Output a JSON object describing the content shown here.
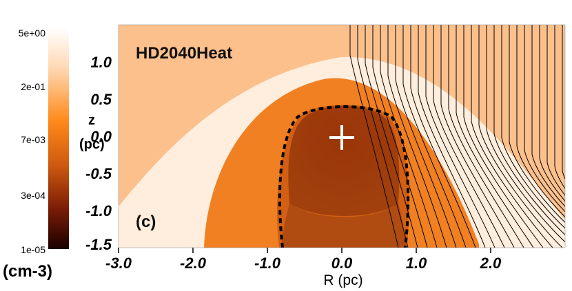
{
  "title": "HD2040Heat",
  "panel_label": "(c)",
  "colorbar": {
    "ticks": [
      "5e+00",
      "2e-01",
      "7e-03",
      "3e-04",
      "1e-05"
    ],
    "unit": "(cm-3)",
    "colors": [
      "#ffffff",
      "#ffd9b5",
      "#ff8a1a",
      "#cf5a10",
      "#7a1c06",
      "#1a0000"
    ]
  },
  "axes": {
    "xlabel": "R (pc)",
    "ylabel_line1": "z",
    "ylabel_line2": "(pc)",
    "xticks": [
      "-3.0",
      "-2.0",
      "-1.0",
      "0.0",
      "1.0",
      "2.0"
    ],
    "yticks": [
      "1.0",
      "0.5",
      "0.0",
      "-0.5",
      "-1.0",
      "-1.5"
    ]
  },
  "colors": {
    "background_region": "#fcc08c",
    "shell_light": "#ffeedd",
    "shell_orange": "#f08022",
    "cavity": "#a9430d",
    "cavity_core": "#8a2e06",
    "cavity_lower": "#6e2205",
    "contour": "#000000",
    "star_marker": "#ffffff"
  },
  "markers": [
    {
      "name": "star",
      "symbol": "+",
      "R": 0.0,
      "z": 0.0
    }
  ]
}
